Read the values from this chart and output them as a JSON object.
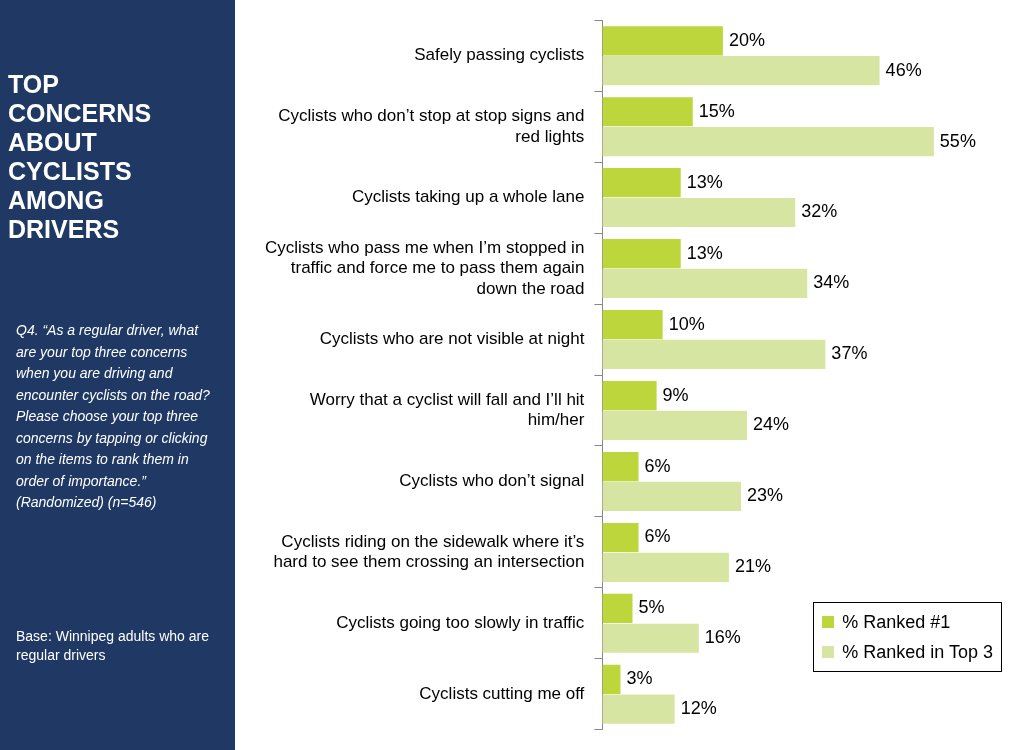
{
  "chart_data": {
    "type": "bar",
    "orientation": "horizontal",
    "title": "TOP CONCERNS ABOUT CYCLISTS AMONG DRIVERS",
    "annotations": [
      "Q4. “As a regular driver, what are your top three concerns when you are driving and encounter cyclists on the road? Please choose your top three concerns by tapping or clicking on the items to rank them in order of importance.” (Randomized) (n=546)",
      "Base: Winnipeg adults who are regular drivers"
    ],
    "categories": [
      "Safely passing cyclists",
      "Cyclists who don’t stop at stop signs and red lights",
      "Cyclists taking up a whole lane",
      "Cyclists who pass me when I’m stopped in traffic and force me to pass them again down the road",
      "Cyclists who are not visible at night",
      "Worry that a cyclist will fall and I’ll hit him/her",
      "Cyclists who don’t signal",
      "Cyclists riding on the sidewalk where it’s hard to see them crossing an intersection",
      "Cyclists going too slowly in traffic",
      "Cyclists cutting me off"
    ],
    "series": [
      {
        "name": "% Ranked #1",
        "color": "#bcd63c",
        "values": [
          20,
          15,
          13,
          13,
          10,
          9,
          6,
          6,
          5,
          3
        ],
        "value_labels": [
          "20%",
          "15%",
          "13%",
          "13%",
          "10%",
          "9%",
          "6%",
          "6%",
          "5%",
          "3%"
        ]
      },
      {
        "name": "% Ranked in Top 3",
        "color": "#d7e5a3",
        "values": [
          46,
          55,
          32,
          34,
          37,
          24,
          23,
          21,
          16,
          12
        ],
        "value_labels": [
          "46%",
          "55%",
          "32%",
          "34%",
          "37%",
          "24%",
          "23%",
          "21%",
          "16%",
          "12%"
        ]
      }
    ],
    "tick_labels": "y",
    "grid": false,
    "legend": "bottom right"
  }
}
